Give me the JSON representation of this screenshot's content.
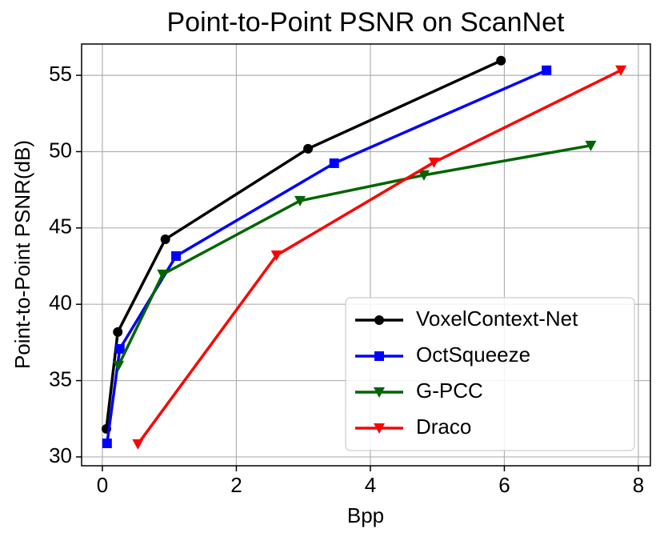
{
  "chart_data": {
    "type": "line",
    "title": "Point-to-Point PSNR on ScanNet",
    "x_label": "Bpp",
    "y_label": "Point-to-Point PSNR(dB)",
    "xlim": [
      -0.31,
      8.18
    ],
    "ylim": [
      29.42,
      57.05
    ],
    "xticks": [
      0,
      2,
      4,
      6,
      8
    ],
    "yticks": [
      30,
      35,
      40,
      45,
      50,
      55
    ],
    "grid": true,
    "legend": "lower right",
    "series": [
      {
        "name": "VoxelContext-Net",
        "color": "#000000",
        "marker": "circle",
        "x": [
          0.06,
          0.23,
          0.94,
          3.07,
          5.95
        ],
        "values": [
          31.84,
          38.18,
          44.26,
          50.19,
          55.96
        ]
      },
      {
        "name": "OctSqueeze",
        "color": "#0000ff",
        "marker": "square",
        "x": [
          0.07,
          0.26,
          1.1,
          3.46,
          6.63
        ],
        "values": [
          30.89,
          37.08,
          43.16,
          49.24,
          55.33
        ]
      },
      {
        "name": "G-PCC",
        "color": "#006400",
        "marker": "triangle-down",
        "x": [
          0.24,
          0.9,
          2.95,
          4.8,
          7.29
        ],
        "values": [
          35.98,
          41.96,
          46.78,
          48.46,
          50.4
        ]
      },
      {
        "name": "Draco",
        "color": "#ff0000",
        "marker": "triangle-down",
        "x": [
          0.53,
          2.6,
          4.95,
          7.74
        ],
        "values": [
          30.84,
          43.21,
          49.3,
          55.33
        ]
      }
    ]
  }
}
